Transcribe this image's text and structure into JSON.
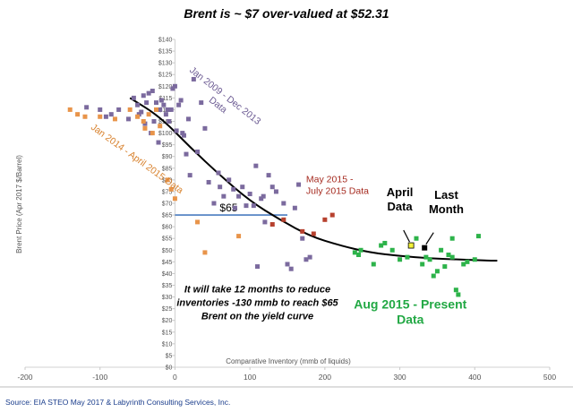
{
  "chart_data": {
    "type": "scatter",
    "title": "Brent is ~ $7 over-valued at $52.31",
    "xlabel": "Comparative Inventory (mmb of liquids)",
    "ylabel": "Brent Price (Apr 2017 $/Barrel)",
    "xlim": [
      -200,
      500
    ],
    "ylim": [
      0,
      140
    ],
    "x_ticks": [
      "-200",
      "-100",
      "0",
      "100",
      "200",
      "300",
      "400",
      "500"
    ],
    "y_ticks": [
      "$0",
      "$5",
      "$10",
      "$15",
      "$20",
      "$25",
      "$30",
      "$35",
      "$40",
      "$45",
      "$50",
      "$55",
      "$60",
      "$65",
      "$70",
      "$75",
      "$80",
      "$85",
      "$90",
      "$95",
      "$100",
      "$105",
      "$110",
      "$115",
      "$120",
      "$125",
      "$130",
      "$135",
      "$140"
    ],
    "grid": false,
    "source": "Source:  EIA STEO May 2017 & Labyrinth Consulting Services, Inc.",
    "colors": {
      "jan2009_dec2013": "#7b6a9e",
      "jan2014_apr2015": "#e8944a",
      "may2015_jul2015": "#b7412e",
      "aug2015_present": "#2db34a",
      "curve": "#000000",
      "ref_line": "#4a7cc0",
      "april_marker": "#f2f23a",
      "last_marker": "#000000"
    },
    "series": [
      {
        "name": "Jan 2009 - Dec 2013 Data",
        "points": [
          [
            -118,
            111
          ],
          [
            -100,
            110
          ],
          [
            -92,
            107
          ],
          [
            -85,
            108
          ],
          [
            -75,
            110
          ],
          [
            -62,
            106
          ],
          [
            -55,
            115
          ],
          [
            -50,
            112
          ],
          [
            -48,
            108
          ],
          [
            -45,
            109
          ],
          [
            -42,
            116
          ],
          [
            -40,
            104
          ],
          [
            -38,
            113
          ],
          [
            -35,
            117
          ],
          [
            -32,
            100
          ],
          [
            -30,
            118
          ],
          [
            -28,
            105
          ],
          [
            -25,
            113
          ],
          [
            -22,
            96
          ],
          [
            -20,
            110
          ],
          [
            -18,
            114
          ],
          [
            -15,
            112
          ],
          [
            -12,
            108
          ],
          [
            -10,
            110
          ],
          [
            -8,
            105
          ],
          [
            -5,
            110
          ],
          [
            -3,
            119
          ],
          [
            0,
            120
          ],
          [
            2,
            101
          ],
          [
            5,
            112
          ],
          [
            8,
            114
          ],
          [
            10,
            100
          ],
          [
            12,
            99
          ],
          [
            15,
            91
          ],
          [
            18,
            106
          ],
          [
            20,
            82
          ],
          [
            25,
            123
          ],
          [
            30,
            92
          ],
          [
            35,
            113
          ],
          [
            40,
            102
          ],
          [
            45,
            79
          ],
          [
            52,
            70
          ],
          [
            58,
            83
          ],
          [
            60,
            77
          ],
          [
            65,
            73
          ],
          [
            72,
            80
          ],
          [
            78,
            76
          ],
          [
            80,
            68
          ],
          [
            85,
            73
          ],
          [
            90,
            77
          ],
          [
            95,
            69
          ],
          [
            100,
            74
          ],
          [
            105,
            69
          ],
          [
            108,
            86
          ],
          [
            110,
            43
          ],
          [
            115,
            72
          ],
          [
            118,
            73
          ],
          [
            120,
            62
          ],
          [
            125,
            82
          ],
          [
            130,
            77
          ],
          [
            135,
            75
          ],
          [
            145,
            70
          ],
          [
            150,
            44
          ],
          [
            155,
            42
          ],
          [
            160,
            68
          ],
          [
            165,
            78
          ],
          [
            170,
            55
          ],
          [
            175,
            46
          ],
          [
            180,
            47
          ]
        ]
      },
      {
        "name": "Jan 2014 - April 2015 Data",
        "points": [
          [
            -140,
            110
          ],
          [
            -130,
            108
          ],
          [
            -120,
            107
          ],
          [
            -100,
            107
          ],
          [
            -80,
            106
          ],
          [
            -60,
            110
          ],
          [
            -50,
            107
          ],
          [
            -42,
            105
          ],
          [
            -40,
            102
          ],
          [
            -35,
            108
          ],
          [
            -30,
            100
          ],
          [
            -25,
            110
          ],
          [
            -20,
            103
          ],
          [
            -10,
            80
          ],
          [
            -5,
            76
          ],
          [
            0,
            72
          ],
          [
            30,
            62
          ],
          [
            40,
            49
          ],
          [
            85,
            56
          ]
        ]
      },
      {
        "name": "May 2015 - July 2015 Data",
        "points": [
          [
            130,
            61
          ],
          [
            145,
            63
          ],
          [
            170,
            58
          ],
          [
            185,
            57
          ],
          [
            200,
            63
          ],
          [
            210,
            65
          ]
        ]
      },
      {
        "name": "Aug 2015 - Present Data",
        "points": [
          [
            240,
            49
          ],
          [
            245,
            48
          ],
          [
            248,
            50
          ],
          [
            265,
            44
          ],
          [
            275,
            52
          ],
          [
            280,
            53
          ],
          [
            290,
            50
          ],
          [
            300,
            46
          ],
          [
            310,
            47
          ],
          [
            315,
            52
          ],
          [
            322,
            55
          ],
          [
            330,
            44
          ],
          [
            335,
            47
          ],
          [
            340,
            46
          ],
          [
            345,
            39
          ],
          [
            350,
            41
          ],
          [
            355,
            50
          ],
          [
            360,
            43
          ],
          [
            365,
            48
          ],
          [
            370,
            47
          ],
          [
            370,
            55
          ],
          [
            375,
            33
          ],
          [
            378,
            31
          ],
          [
            385,
            44
          ],
          [
            390,
            45
          ],
          [
            400,
            46
          ],
          [
            405,
            56
          ]
        ]
      }
    ],
    "special_points": [
      {
        "name": "April Data",
        "x": 315,
        "y": 52
      },
      {
        "name": "Last Month",
        "x": 333,
        "y": 51
      }
    ],
    "curve": {
      "name": "yield curve",
      "points": [
        [
          -60,
          115
        ],
        [
          -20,
          107
        ],
        [
          20,
          94
        ],
        [
          60,
          82
        ],
        [
          100,
          71
        ],
        [
          140,
          63
        ],
        [
          180,
          56
        ],
        [
          220,
          52
        ],
        [
          260,
          49
        ],
        [
          300,
          47.5
        ],
        [
          340,
          46.5
        ],
        [
          380,
          46
        ],
        [
          420,
          45.5
        ],
        [
          430,
          45.5
        ]
      ]
    },
    "reference_line": {
      "label": "$65",
      "y": 65,
      "x_from": 0,
      "x_to": 150
    },
    "annotations": [
      {
        "id": "jan2009",
        "lines": [
          "Jan 2009 - Dec 2013",
          "Data"
        ]
      },
      {
        "id": "jan2014",
        "lines": [
          "Jan 2014 - April 2015 Data"
        ]
      },
      {
        "id": "may2015",
        "lines": [
          "May 2015 -",
          "July 2015 Data"
        ]
      },
      {
        "id": "aug2015",
        "lines": [
          "Aug 2015 - Present",
          "Data"
        ]
      },
      {
        "id": "april",
        "lines": [
          "April",
          "Data"
        ]
      },
      {
        "id": "lastmonth",
        "lines": [
          "Last",
          "Month"
        ]
      },
      {
        "id": "note",
        "lines": [
          "It will take 12 months to reduce",
          "inventories -130 mmb to reach $65",
          "Brent on the yield curve"
        ]
      }
    ]
  }
}
